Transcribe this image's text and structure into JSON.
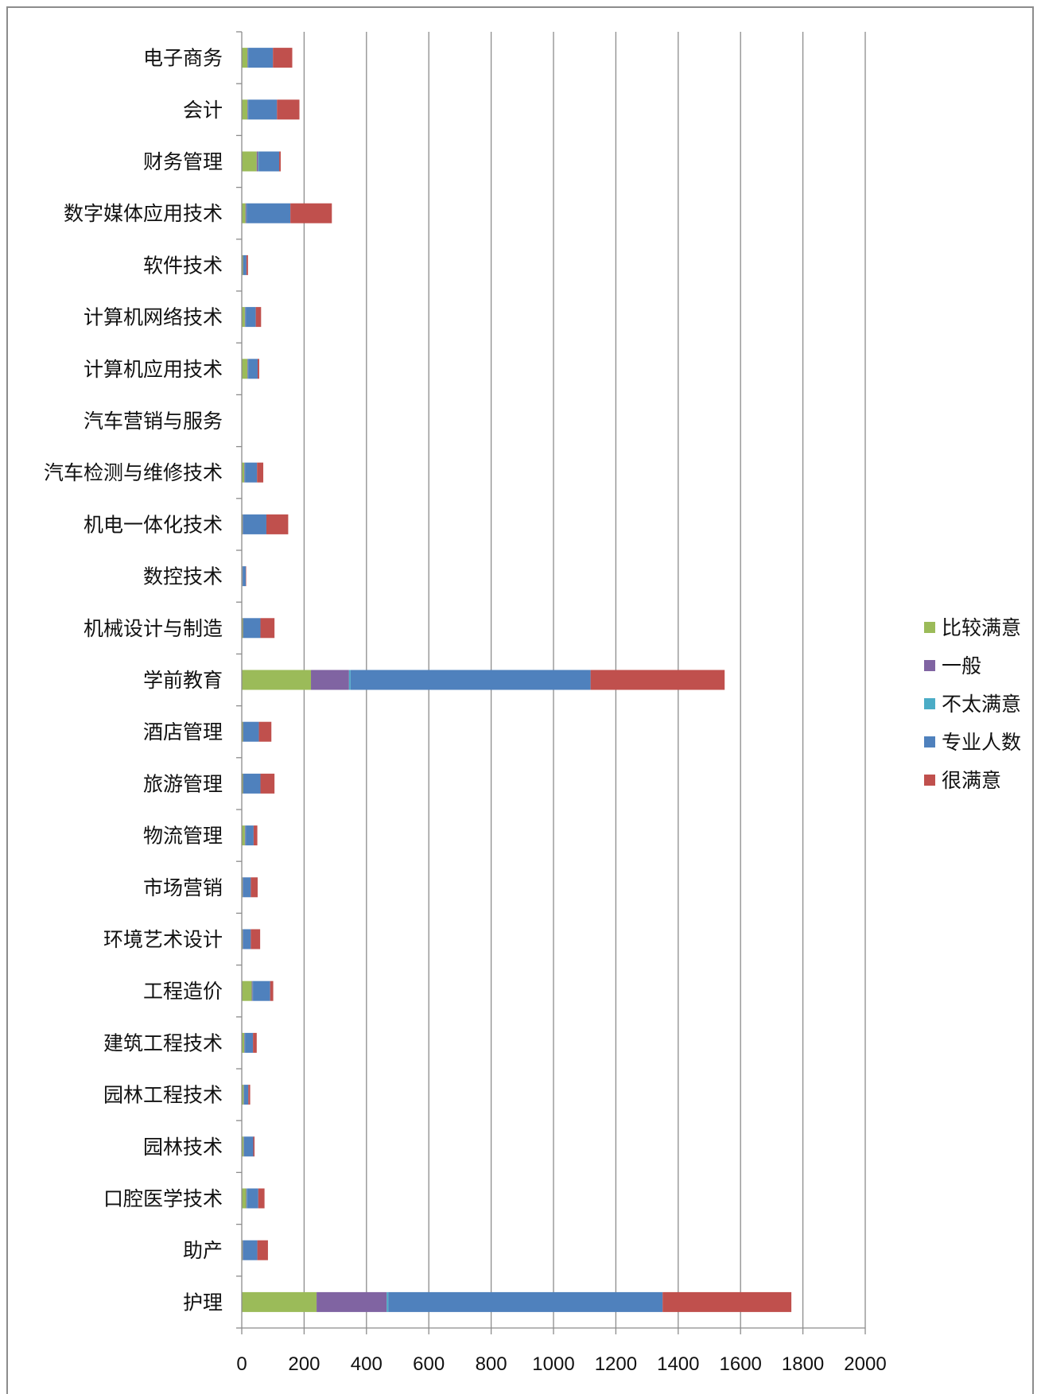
{
  "chart_data": {
    "type": "bar",
    "orientation": "horizontal",
    "stacked": true,
    "title": "",
    "xlabel": "",
    "ylabel": "",
    "xlim": [
      0,
      2000
    ],
    "x_ticks": [
      "0",
      "200",
      "400",
      "600",
      "800",
      "1000",
      "1200",
      "1400",
      "1600",
      "1800",
      "2000"
    ],
    "grid": "vertical",
    "legend_position": "right",
    "categories": [
      "电子商务",
      "会计",
      "财务管理",
      "数字媒体应用技术",
      "软件技术",
      "计算机网络技术",
      "计算机应用技术",
      "汽车营销与服务",
      "汽车检测与维修技术",
      "机电一体化技术",
      "数控技术",
      "机械设计与制造",
      "学前教育",
      "酒店管理",
      "旅游管理",
      "物流管理",
      "市场营销",
      "环境艺术设计",
      "工程造价",
      "建筑工程技术",
      "园林工程技术",
      "园林技术",
      "口腔医学技术",
      "助产",
      "护理"
    ],
    "series": [
      {
        "name": "比较满意",
        "color": "#9BBB59",
        "values": [
          18,
          18,
          48,
          12,
          4,
          10,
          18,
          0,
          8,
          3,
          2,
          4,
          222,
          4,
          4,
          10,
          3,
          3,
          32,
          8,
          6,
          6,
          14,
          3,
          240
        ]
      },
      {
        "name": "一般",
        "color": "#8064A2",
        "values": [
          2,
          2,
          5,
          3,
          1,
          2,
          2,
          0,
          2,
          1,
          1,
          1,
          122,
          1,
          1,
          2,
          1,
          1,
          3,
          2,
          1,
          1,
          2,
          1,
          225
        ]
      },
      {
        "name": "不太满意",
        "color": "#4BACC6",
        "values": [
          1,
          1,
          2,
          1,
          0,
          1,
          1,
          0,
          1,
          0,
          0,
          0,
          5,
          0,
          0,
          1,
          0,
          0,
          1,
          1,
          0,
          0,
          1,
          0,
          5
        ]
      },
      {
        "name": "专业人数",
        "color": "#4F81BD",
        "values": [
          79,
          92,
          65,
          140,
          10,
          32,
          30,
          0,
          38,
          75,
          10,
          55,
          770,
          50,
          55,
          25,
          25,
          25,
          55,
          25,
          14,
          30,
          36,
          46,
          880
        ]
      },
      {
        "name": "很满意",
        "color": "#C0504D",
        "values": [
          62,
          72,
          5,
          133,
          5,
          17,
          5,
          0,
          20,
          70,
          1,
          45,
          430,
          40,
          45,
          12,
          22,
          30,
          10,
          12,
          6,
          4,
          20,
          34,
          413
        ]
      }
    ]
  }
}
